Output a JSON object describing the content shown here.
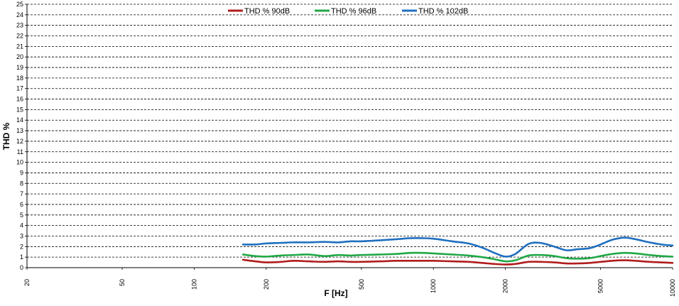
{
  "chart_data": {
    "type": "line",
    "title": "",
    "xlabel": "F [Hz]",
    "ylabel": "THD %",
    "x_scale": "log",
    "xlim": [
      20,
      10000
    ],
    "ylim": [
      0,
      25
    ],
    "x_ticks": [
      20,
      50,
      100,
      200,
      500,
      1000,
      2000,
      5000,
      10000
    ],
    "y_ticks": [
      0,
      1,
      2,
      3,
      4,
      5,
      6,
      7,
      8,
      9,
      10,
      11,
      12,
      13,
      14,
      15,
      16,
      17,
      18,
      19,
      20,
      21,
      22,
      23,
      24,
      25
    ],
    "grid": "horizontal dashed",
    "legend_position": "top-center",
    "series": [
      {
        "name": "THD % 90dB",
        "color": "#b01c1c",
        "x": [
          160,
          180,
          200,
          230,
          260,
          300,
          350,
          400,
          450,
          500,
          600,
          700,
          800,
          900,
          1000,
          1200,
          1400,
          1600,
          1800,
          2000,
          2200,
          2500,
          2800,
          3200,
          3600,
          4000,
          4500,
          5000,
          5600,
          6300,
          7000,
          8000,
          9000,
          10000
        ],
        "y": [
          0.75,
          0.6,
          0.5,
          0.55,
          0.65,
          0.6,
          0.55,
          0.6,
          0.55,
          0.55,
          0.6,
          0.65,
          0.65,
          0.65,
          0.65,
          0.6,
          0.55,
          0.45,
          0.35,
          0.3,
          0.35,
          0.55,
          0.55,
          0.5,
          0.4,
          0.4,
          0.45,
          0.55,
          0.65,
          0.7,
          0.65,
          0.55,
          0.5,
          0.45
        ]
      },
      {
        "name": "THD % 96dB",
        "color": "#21a846",
        "x": [
          160,
          180,
          200,
          230,
          260,
          300,
          350,
          400,
          450,
          500,
          600,
          700,
          800,
          900,
          1000,
          1200,
          1400,
          1600,
          1800,
          2000,
          2200,
          2500,
          2800,
          3200,
          3600,
          4000,
          4500,
          5000,
          5600,
          6300,
          7000,
          8000,
          9000,
          10000
        ],
        "y": [
          1.25,
          1.1,
          1.05,
          1.15,
          1.2,
          1.25,
          1.1,
          1.2,
          1.15,
          1.2,
          1.25,
          1.3,
          1.4,
          1.4,
          1.35,
          1.25,
          1.15,
          1.0,
          0.8,
          0.6,
          0.7,
          1.15,
          1.2,
          1.1,
          0.9,
          0.85,
          0.9,
          1.1,
          1.3,
          1.4,
          1.35,
          1.2,
          1.1,
          1.05
        ]
      },
      {
        "name": "THD % 102dB",
        "color": "#1f6fbf",
        "x": [
          160,
          180,
          200,
          230,
          260,
          300,
          350,
          400,
          450,
          500,
          600,
          700,
          800,
          900,
          1000,
          1200,
          1400,
          1600,
          1800,
          2000,
          2200,
          2500,
          2800,
          3200,
          3600,
          4000,
          4500,
          5000,
          5600,
          6300,
          7000,
          8000,
          9000,
          10000
        ],
        "y": [
          2.2,
          2.2,
          2.3,
          2.35,
          2.4,
          2.4,
          2.45,
          2.4,
          2.5,
          2.5,
          2.6,
          2.7,
          2.8,
          2.8,
          2.75,
          2.5,
          2.3,
          1.9,
          1.4,
          1.05,
          1.3,
          2.25,
          2.35,
          2.0,
          1.65,
          1.75,
          1.85,
          2.2,
          2.65,
          2.85,
          2.7,
          2.4,
          2.2,
          2.1
        ]
      }
    ]
  }
}
